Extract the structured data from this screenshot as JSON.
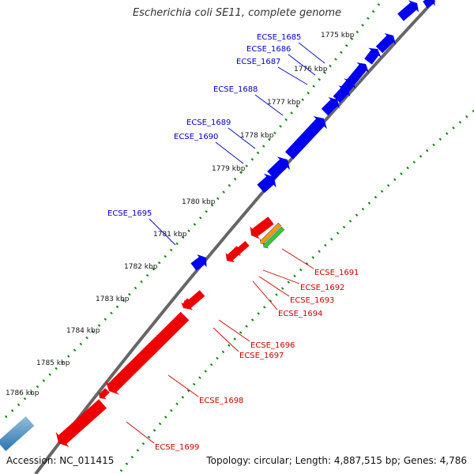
{
  "title": "Escherichia coli SE11, complete genome",
  "footer": {
    "accession_label": "Accession:",
    "accession": "NC_011415",
    "topology_label": "Topology:",
    "topology": "circular",
    "length_label": "Length:",
    "length": "4,887,515 bp",
    "genes_label": "Genes:",
    "genes": "4,786"
  },
  "colors": {
    "forward_gene": "#0000ee",
    "reverse_gene": "#ee0000",
    "forward_label": "#0000cc",
    "reverse_label": "#cc0000",
    "backbone": "#666666",
    "dotted_ring": "#118811"
  },
  "ruler": {
    "unit": "kbp",
    "ticks": [
      "1775 kbp",
      "1776 kbp",
      "1777 kbp",
      "1778 kbp",
      "1779 kbp",
      "1780 kbp",
      "1781 kbp",
      "1782 kbp",
      "1783 kbp",
      "1784 kbp",
      "1785 kbp",
      "1786 kbp"
    ]
  },
  "gene_labels": {
    "forward": [
      "ECSE_1685",
      "ECSE_1686",
      "ECSE_1687",
      "ECSE_1688",
      "ECSE_1689",
      "ECSE_1690",
      "ECSE_1695"
    ],
    "reverse": [
      "ECSE_1691",
      "ECSE_1692",
      "ECSE_1693",
      "ECSE_1694",
      "ECSE_1696",
      "ECSE_1697",
      "ECSE_1698",
      "ECSE_1699"
    ]
  }
}
